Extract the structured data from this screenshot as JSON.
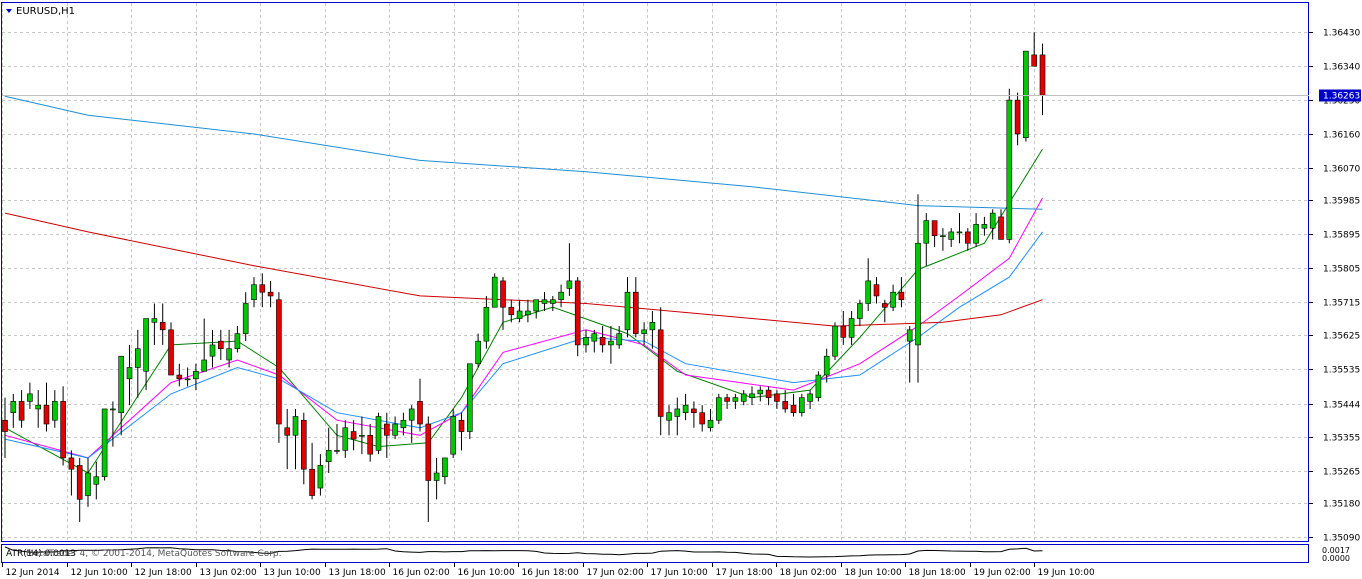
{
  "window": {
    "symbol_label": "EURUSD,H1",
    "indicator_label": "ATR(14) 0.0013",
    "copyright": "MetaTrader 4, © 2001-2014, MetaQuotes Software Corp.",
    "indicator_values": [
      "0.0017",
      "0.0000"
    ]
  },
  "colors": {
    "up_candle": "#00c800",
    "down_candle": "#e00000",
    "ma_fast": "#008000",
    "ma_mid": "#ff00ff",
    "ma_mid2": "#1e90ff",
    "ma_long_blue": "#1e8fd6",
    "ma_long_red": "#d00000",
    "frame": "#0000c8",
    "grid": "#c8c8c8",
    "price_tag_bg": "#0000c8",
    "price_tag_text": "#ffffff"
  },
  "chart_data": {
    "type": "candlestick",
    "symbol": "EURUSD",
    "timeframe": "H1",
    "current_price": "1.36263",
    "ylim": [
      1.3509,
      1.3646
    ],
    "y_ticks": [
      "1.36430",
      "1.36340",
      "1.36250",
      "1.36160",
      "1.36070",
      "1.35985",
      "1.35895",
      "1.35805",
      "1.35715",
      "1.35625",
      "1.35535",
      "1.35444",
      "1.35355",
      "1.35265",
      "1.35180",
      "1.35090"
    ],
    "x_ticks": [
      "12 Jun 2014",
      "12 Jun 10:00",
      "12 Jun 18:00",
      "13 Jun 02:00",
      "13 Jun 10:00",
      "13 Jun 18:00",
      "16 Jun 02:00",
      "16 Jun 10:00",
      "16 Jun 18:00",
      "17 Jun 02:00",
      "17 Jun 10:00",
      "17 Jun 18:00",
      "18 Jun 02:00",
      "18 Jun 10:00",
      "18 Jun 18:00",
      "19 Jun 02:00",
      "19 Jun 10:00"
    ],
    "candles": [
      [
        1.354,
        1.3546,
        1.353,
        1.3537
      ],
      [
        1.3542,
        1.3547,
        1.3538,
        1.3545
      ],
      [
        1.3545,
        1.3548,
        1.3538,
        1.354
      ],
      [
        1.3545,
        1.355,
        1.3543,
        1.3547
      ],
      [
        1.3543,
        1.3548,
        1.3538,
        1.3544
      ],
      [
        1.3544,
        1.355,
        1.3537,
        1.3539
      ],
      [
        1.354,
        1.3548,
        1.3538,
        1.3545
      ],
      [
        1.3545,
        1.3549,
        1.3528,
        1.353
      ],
      [
        1.353,
        1.3532,
        1.352,
        1.3527
      ],
      [
        1.3528,
        1.353,
        1.3513,
        1.3519
      ],
      [
        1.352,
        1.353,
        1.3517,
        1.3526
      ],
      [
        1.3523,
        1.3529,
        1.3519,
        1.3525
      ],
      [
        1.3525,
        1.3543,
        1.3524,
        1.3543
      ],
      [
        1.3543,
        1.3545,
        1.3533,
        1.3543
      ],
      [
        1.3542,
        1.3557,
        1.3536,
        1.3557
      ],
      [
        1.3551,
        1.356,
        1.3544,
        1.3554
      ],
      [
        1.3554,
        1.3564,
        1.3546,
        1.3559
      ],
      [
        1.3553,
        1.3567,
        1.3548,
        1.3567
      ],
      [
        1.3566,
        1.3571,
        1.356,
        1.3567
      ],
      [
        1.3566,
        1.3571,
        1.356,
        1.3564
      ],
      [
        1.3564,
        1.3566,
        1.3552,
        1.3552
      ],
      [
        1.3552,
        1.3555,
        1.3549,
        1.3551
      ],
      [
        1.3551,
        1.3554,
        1.3549,
        1.3551
      ],
      [
        1.3551,
        1.3555,
        1.3548,
        1.3553
      ],
      [
        1.3553,
        1.3567,
        1.3553,
        1.3556
      ],
      [
        1.3557,
        1.3564,
        1.3554,
        1.356
      ],
      [
        1.3561,
        1.3564,
        1.3556,
        1.3559
      ],
      [
        1.3556,
        1.3564,
        1.3554,
        1.3559
      ],
      [
        1.3559,
        1.3565,
        1.3558,
        1.3563
      ],
      [
        1.3563,
        1.3574,
        1.3561,
        1.3571
      ],
      [
        1.3572,
        1.3578,
        1.357,
        1.3576
      ],
      [
        1.3576,
        1.3579,
        1.357,
        1.3574
      ],
      [
        1.3574,
        1.3577,
        1.357,
        1.3573
      ],
      [
        1.3572,
        1.3574,
        1.3534,
        1.3539
      ],
      [
        1.3538,
        1.3543,
        1.3527,
        1.3536
      ],
      [
        1.3536,
        1.3543,
        1.3527,
        1.3541
      ],
      [
        1.354,
        1.3542,
        1.3523,
        1.3527
      ],
      [
        1.3527,
        1.3534,
        1.3519,
        1.352
      ],
      [
        1.3522,
        1.3531,
        1.352,
        1.3528
      ],
      [
        1.3529,
        1.3538,
        1.3526,
        1.3532
      ],
      [
        1.3532,
        1.3539,
        1.3531,
        1.3532
      ],
      [
        1.3532,
        1.354,
        1.353,
        1.3538
      ],
      [
        1.3537,
        1.354,
        1.3532,
        1.3535
      ],
      [
        1.3536,
        1.3541,
        1.3531,
        1.3536
      ],
      [
        1.3536,
        1.3539,
        1.3529,
        1.3531
      ],
      [
        1.3532,
        1.3542,
        1.3531,
        1.3541
      ],
      [
        1.3539,
        1.3542,
        1.353,
        1.3536
      ],
      [
        1.3536,
        1.3541,
        1.3535,
        1.3539
      ],
      [
        1.3538,
        1.3542,
        1.3536,
        1.354
      ],
      [
        1.354,
        1.3544,
        1.3534,
        1.3543
      ],
      [
        1.3545,
        1.3551,
        1.3537,
        1.3539
      ],
      [
        1.3539,
        1.3541,
        1.3513,
        1.3524
      ],
      [
        1.3524,
        1.353,
        1.3519,
        1.3526
      ],
      [
        1.3525,
        1.353,
        1.3523,
        1.353
      ],
      [
        1.3531,
        1.3543,
        1.353,
        1.3541
      ],
      [
        1.354,
        1.3542,
        1.3532,
        1.3537
      ],
      [
        1.3537,
        1.3555,
        1.3535,
        1.3555
      ],
      [
        1.3555,
        1.3563,
        1.3554,
        1.3561
      ],
      [
        1.3561,
        1.3573,
        1.3559,
        1.357
      ],
      [
        1.357,
        1.3579,
        1.357,
        1.3578
      ],
      [
        1.3577,
        1.3578,
        1.3564,
        1.357
      ],
      [
        1.357,
        1.3572,
        1.3566,
        1.3568
      ],
      [
        1.3567,
        1.3572,
        1.3566,
        1.3569
      ],
      [
        1.3568,
        1.3572,
        1.3566,
        1.3569
      ],
      [
        1.3569,
        1.3572,
        1.3567,
        1.3572
      ],
      [
        1.3571,
        1.3574,
        1.3569,
        1.3572
      ],
      [
        1.3571,
        1.3573,
        1.3569,
        1.3572
      ],
      [
        1.3572,
        1.3576,
        1.357,
        1.3574
      ],
      [
        1.3575,
        1.3587,
        1.3573,
        1.3577
      ],
      [
        1.3577,
        1.3578,
        1.3557,
        1.356
      ],
      [
        1.356,
        1.3564,
        1.3558,
        1.3562
      ],
      [
        1.3561,
        1.3564,
        1.3558,
        1.3563
      ],
      [
        1.3562,
        1.3565,
        1.3558,
        1.356
      ],
      [
        1.356,
        1.3565,
        1.3555,
        1.3561
      ],
      [
        1.356,
        1.3565,
        1.3559,
        1.3563
      ],
      [
        1.3564,
        1.3578,
        1.3562,
        1.3574
      ],
      [
        1.3574,
        1.3578,
        1.3562,
        1.3563
      ],
      [
        1.3563,
        1.3566,
        1.356,
        1.3564
      ],
      [
        1.3564,
        1.3569,
        1.3559,
        1.3566
      ],
      [
        1.3564,
        1.357,
        1.3536,
        1.3541
      ],
      [
        1.354,
        1.3544,
        1.3536,
        1.3542
      ],
      [
        1.3541,
        1.3546,
        1.3536,
        1.3543
      ],
      [
        1.3542,
        1.3547,
        1.354,
        1.3544
      ],
      [
        1.3543,
        1.3545,
        1.3538,
        1.3542
      ],
      [
        1.3542,
        1.3544,
        1.3537,
        1.3539
      ],
      [
        1.3538,
        1.3543,
        1.3537,
        1.354
      ],
      [
        1.354,
        1.3547,
        1.3539,
        1.3546
      ],
      [
        1.3546,
        1.3547,
        1.3543,
        1.3545
      ],
      [
        1.3545,
        1.3547,
        1.3543,
        1.3546
      ],
      [
        1.3545,
        1.3548,
        1.3544,
        1.3547
      ],
      [
        1.3546,
        1.3549,
        1.3544,
        1.3547
      ],
      [
        1.3547,
        1.3549,
        1.3545,
        1.3548
      ],
      [
        1.3548,
        1.3549,
        1.3544,
        1.3546
      ],
      [
        1.3547,
        1.3548,
        1.3543,
        1.3545
      ],
      [
        1.3545,
        1.3548,
        1.3542,
        1.3543
      ],
      [
        1.3544,
        1.3547,
        1.3541,
        1.3542
      ],
      [
        1.3542,
        1.3547,
        1.3541,
        1.3546
      ],
      [
        1.3545,
        1.3548,
        1.3543,
        1.3547
      ],
      [
        1.3546,
        1.3553,
        1.3545,
        1.3552
      ],
      [
        1.3552,
        1.3559,
        1.355,
        1.3557
      ],
      [
        1.3557,
        1.3566,
        1.3556,
        1.3565
      ],
      [
        1.3565,
        1.3569,
        1.356,
        1.3562
      ],
      [
        1.3562,
        1.3569,
        1.356,
        1.3567
      ],
      [
        1.3567,
        1.3572,
        1.3565,
        1.3571
      ],
      [
        1.3571,
        1.3583,
        1.3569,
        1.3577
      ],
      [
        1.3576,
        1.3578,
        1.3571,
        1.3573
      ],
      [
        1.3571,
        1.3572,
        1.3566,
        1.357
      ],
      [
        1.357,
        1.3576,
        1.3569,
        1.3574
      ],
      [
        1.3574,
        1.3578,
        1.357,
        1.3572
      ],
      [
        1.3561,
        1.3565,
        1.355,
        1.3564
      ],
      [
        1.356,
        1.36,
        1.355,
        1.3587
      ],
      [
        1.3587,
        1.3595,
        1.3581,
        1.3593
      ],
      [
        1.3593,
        1.3593,
        1.3586,
        1.3589
      ],
      [
        1.3589,
        1.3591,
        1.3585,
        1.3589
      ],
      [
        1.3588,
        1.3591,
        1.3586,
        1.359
      ],
      [
        1.359,
        1.3595,
        1.3587,
        1.359
      ],
      [
        1.359,
        1.3591,
        1.3585,
        1.3587
      ],
      [
        1.3587,
        1.3595,
        1.3586,
        1.3592
      ],
      [
        1.3591,
        1.3594,
        1.3589,
        1.3592
      ],
      [
        1.3591,
        1.3596,
        1.3588,
        1.3595
      ],
      [
        1.3594,
        1.3596,
        1.3588,
        1.3588
      ],
      [
        1.3588,
        1.3628,
        1.3587,
        1.3625
      ],
      [
        1.3625,
        1.3627,
        1.3613,
        1.3616
      ],
      [
        1.3615,
        1.3638,
        1.3614,
        1.3638
      ],
      [
        1.3637,
        1.3643,
        1.3634,
        1.3634
      ],
      [
        1.3637,
        1.364,
        1.3621,
        1.36263
      ]
    ],
    "moving_averages": [
      {
        "color": "#008000",
        "values": [
          [
            0,
            1.3538
          ],
          [
            10,
            1.3526
          ],
          [
            20,
            1.356
          ],
          [
            28,
            1.3561
          ],
          [
            33,
            1.3554
          ],
          [
            40,
            1.3536
          ],
          [
            45,
            1.3533
          ],
          [
            51,
            1.3534
          ],
          [
            55,
            1.3546
          ],
          [
            60,
            1.3566
          ],
          [
            66,
            1.357
          ],
          [
            75,
            1.3563
          ],
          [
            81,
            1.3553
          ],
          [
            90,
            1.3546
          ],
          [
            97,
            1.3548
          ],
          [
            103,
            1.3562
          ],
          [
            110,
            1.358
          ],
          [
            118,
            1.3587
          ],
          [
            125,
            1.3612
          ]
        ]
      },
      {
        "color": "#ff00ff",
        "values": [
          [
            0,
            1.3536
          ],
          [
            10,
            1.353
          ],
          [
            20,
            1.355
          ],
          [
            28,
            1.3556
          ],
          [
            33,
            1.3552
          ],
          [
            40,
            1.354
          ],
          [
            50,
            1.3536
          ],
          [
            55,
            1.3542
          ],
          [
            60,
            1.3558
          ],
          [
            70,
            1.3564
          ],
          [
            77,
            1.356
          ],
          [
            82,
            1.3552
          ],
          [
            95,
            1.3548
          ],
          [
            103,
            1.3555
          ],
          [
            110,
            1.3565
          ],
          [
            115,
            1.3573
          ],
          [
            121,
            1.3583
          ],
          [
            125,
            1.3599
          ]
        ]
      },
      {
        "color": "#1e90ff",
        "values": [
          [
            0,
            1.3535
          ],
          [
            10,
            1.353
          ],
          [
            20,
            1.3547
          ],
          [
            28,
            1.3554
          ],
          [
            33,
            1.3551
          ],
          [
            40,
            1.3542
          ],
          [
            50,
            1.3538
          ],
          [
            55,
            1.3542
          ],
          [
            60,
            1.3555
          ],
          [
            70,
            1.3562
          ],
          [
            77,
            1.3561
          ],
          [
            82,
            1.3555
          ],
          [
            95,
            1.355
          ],
          [
            103,
            1.3552
          ],
          [
            110,
            1.3562
          ],
          [
            115,
            1.357
          ],
          [
            121,
            1.3578
          ],
          [
            125,
            1.359
          ]
        ]
      },
      {
        "color": "#1e8fd6",
        "values": [
          [
            0,
            1.3626
          ],
          [
            10,
            1.3621
          ],
          [
            30,
            1.3616
          ],
          [
            50,
            1.3609
          ],
          [
            70,
            1.3606
          ],
          [
            90,
            1.3602
          ],
          [
            110,
            1.3597
          ],
          [
            125,
            1.3596
          ]
        ]
      },
      {
        "color": "#d00000",
        "values": [
          [
            0,
            1.3595
          ],
          [
            10,
            1.359
          ],
          [
            30,
            1.3581
          ],
          [
            50,
            1.3573
          ],
          [
            70,
            1.3571
          ],
          [
            90,
            1.3567
          ],
          [
            100,
            1.3565
          ],
          [
            113,
            1.3566
          ],
          [
            120,
            1.3568
          ],
          [
            125,
            1.3572
          ]
        ]
      }
    ]
  }
}
